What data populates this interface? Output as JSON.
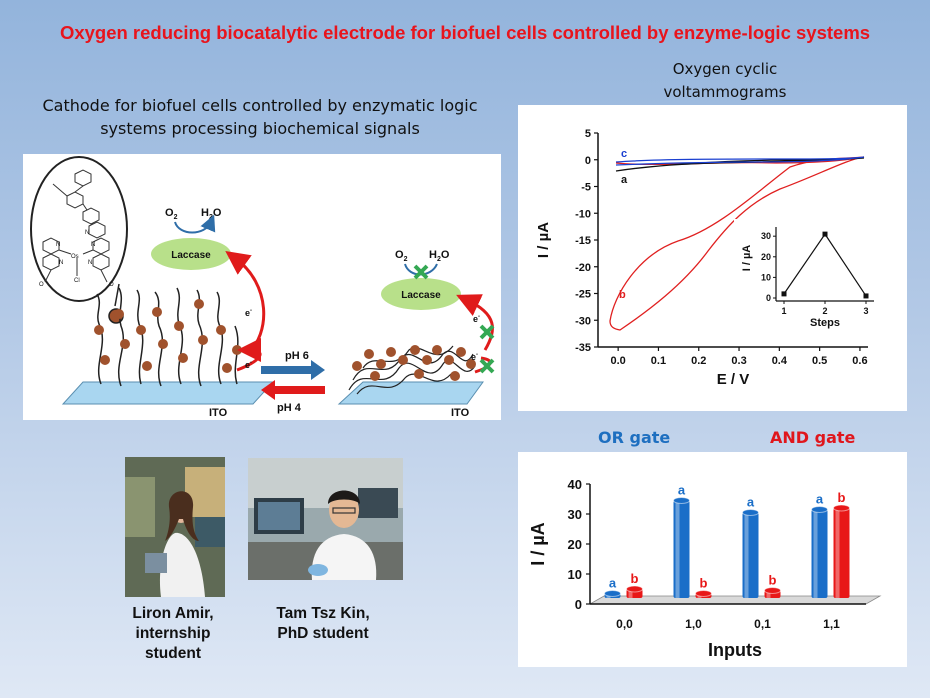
{
  "title": "Oxygen reducing biocatalytic electrode for biofuel cells controlled by enzyme-logic systems",
  "cathode_caption": {
    "line1": "Cathode for biofuel cells controlled by enzymatic logic",
    "line2": "systems processing biochemical signals"
  },
  "schematic": {
    "o2": "O",
    "o2_sub": "2",
    "h2o_h": "H",
    "h2o_sub": "2",
    "h2o_o": "O",
    "enzyme": "Laccase",
    "electron": "e",
    "electron_sup": "-",
    "ito": "ITO",
    "ph_forward": "pH 6",
    "ph_back": "pH 4",
    "complex_labels": [
      "N",
      "N",
      "Os",
      "N",
      "N",
      "Cl",
      "N",
      "O",
      "O"
    ],
    "colors": {
      "polymer_bead": "#a0522d",
      "enzyme": "#b8e08a",
      "electron_arrow": "#e01b1b",
      "block_mark": "#34a853",
      "ph6_arrow": "#2f6ea8",
      "ph4_arrow": "#e01b1b",
      "electrode": "#a9d6f0"
    }
  },
  "cv_caption": {
    "line1": "Oxygen cyclic",
    "line2": "voltammograms"
  },
  "cv_chart": {
    "chart_data": {
      "type": "line",
      "xlabel": "E / V",
      "ylabel": "I / µA",
      "xlim": [
        -0.05,
        0.62
      ],
      "ylim": [
        -35,
        5
      ],
      "xticks": [
        "0.0",
        "0.1",
        "0.2",
        "0.3",
        "0.4",
        "0.5",
        "0.6"
      ],
      "yticks": [
        "5",
        "0",
        "-5",
        "-10",
        "-15",
        "-20",
        "-25",
        "-30",
        "-35"
      ],
      "series": [
        {
          "name": "a",
          "color": "#000000"
        },
        {
          "name": "b",
          "color": "#e02020"
        },
        {
          "name": "c",
          "color": "#1a3fd0"
        }
      ],
      "curve_labels": [
        "a",
        "b",
        "c"
      ]
    },
    "inset": {
      "chart_data": {
        "type": "line",
        "xlabel": "Steps",
        "ylabel": "I / µA",
        "x": [
          1,
          2,
          3
        ],
        "values": [
          2,
          31,
          1
        ],
        "xticks": [
          "1",
          "2",
          "3"
        ],
        "yticks": [
          "0",
          "10",
          "20",
          "30"
        ],
        "ylim": [
          0,
          33
        ]
      }
    }
  },
  "gates": {
    "or": "OR gate",
    "and": "AND gate"
  },
  "bar_chart": {
    "chart_data": {
      "type": "bar",
      "categories": [
        "0,0",
        "1,0",
        "0,1",
        "1,1"
      ],
      "series": [
        {
          "name": "a",
          "color": "#1a6ec8",
          "values": [
            1.5,
            32.5,
            28.5,
            29.5
          ]
        },
        {
          "name": "b",
          "color": "#e81818",
          "values": [
            3,
            1.5,
            2.5,
            30
          ]
        }
      ],
      "xlabel": "Inputs",
      "ylabel": "I / µA",
      "ylim": [
        0,
        40
      ],
      "yticks": [
        "0",
        "10",
        "20",
        "30",
        "40"
      ]
    }
  },
  "people": [
    {
      "name": "Liron Amir,",
      "role1": "internship",
      "role2": "student"
    },
    {
      "name": "Tam Tsz Kin,",
      "role1": "PhD student"
    }
  ]
}
